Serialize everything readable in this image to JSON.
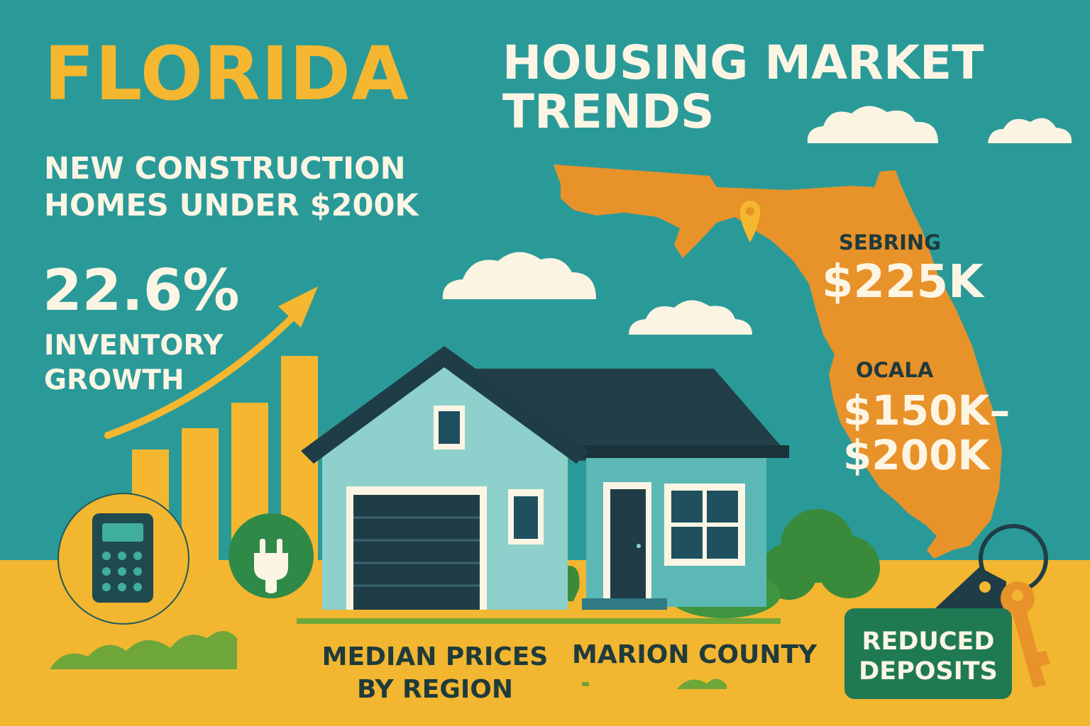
{
  "header": {
    "title_primary": "FLORIDA",
    "title_secondary": "HOUSING MARKET TRENDS",
    "subtitle": "NEW CONSTRUCTION HOMES UNDER $200K"
  },
  "stat": {
    "value": "22.6%",
    "label": "INVENTORY GROWTH"
  },
  "regions": [
    {
      "name": "SEBRING",
      "price": "$225K"
    },
    {
      "name": "OCALA",
      "price": "$150K–$200K"
    }
  ],
  "footer": {
    "median_label": "MEDIAN PRICES BY REGION",
    "county_label": "MARION COUNTY",
    "deposits_label": "REDUCED DEPOSITS"
  },
  "icons": [
    "calculator-icon",
    "plug-icon",
    "location-pin-icon",
    "key-icon",
    "growth-arrow-icon"
  ],
  "colors": {
    "sky_teal": "#2a9a98",
    "accent_yellow": "#f5b730",
    "ground_yellow": "#f2b630",
    "map_orange": "#e8922a",
    "cream_text": "#fdf5e4",
    "dark_text": "#1f3b3c",
    "badge_green": "#1f7a54"
  }
}
